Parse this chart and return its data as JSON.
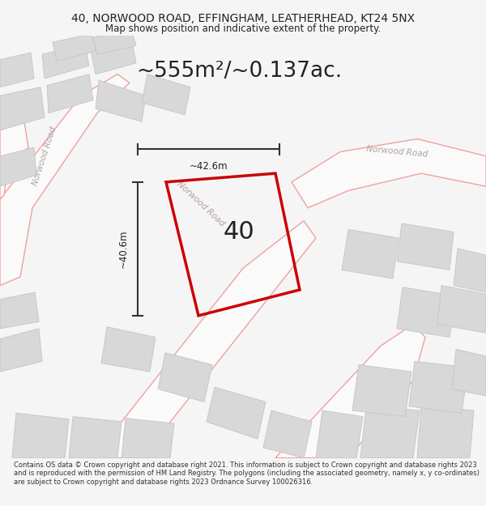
{
  "title_line1": "40, NORWOOD ROAD, EFFINGHAM, LEATHERHEAD, KT24 5NX",
  "title_line2": "Map shows position and indicative extent of the property.",
  "footer_text": "Contains OS data © Crown copyright and database right 2021. This information is subject to Crown copyright and database rights 2023 and is reproduced with the permission of HM Land Registry. The polygons (including the associated geometry, namely x, y co-ordinates) are subject to Crown copyright and database rights 2023 Ordnance Survey 100026316.",
  "area_label": "~555m²/~0.137ac.",
  "property_number": "40",
  "dim_vertical": "~40.6m",
  "dim_horizontal": "~42.6m",
  "road_label_diag": "Norwood Road",
  "road_label_right": "Norwood Road",
  "road_label_left": "Norwood Road",
  "bg_color": "#f5f5f5",
  "map_bg": "#eeecec",
  "road_fill": "#fafafa",
  "road_stroke": "#f0a0a0",
  "property_stroke": "#cc0000",
  "building_fill": "#d8d8d8",
  "building_stroke": "#c8c8c8",
  "dim_color": "#333333",
  "text_dark": "#222222",
  "text_road": "#b0a0a0"
}
